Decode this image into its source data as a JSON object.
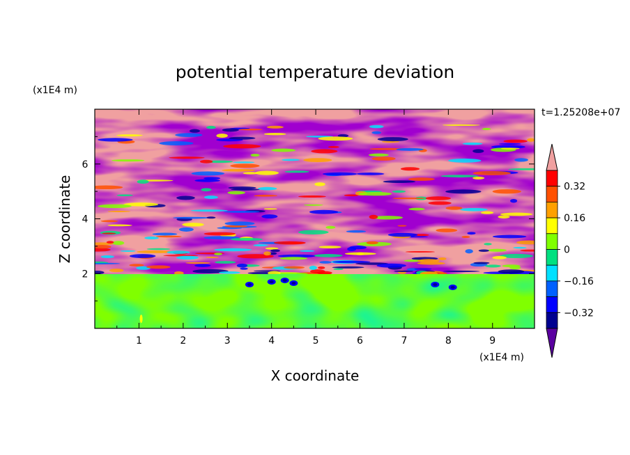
{
  "chart_data": {
    "type": "heatmap",
    "title": "potential temperature deviation",
    "xlabel": "X coordinate",
    "ylabel": "Z coordinate",
    "x_unit": "(x1E4 m)",
    "y_unit": "(x1E4 m)",
    "time_label": "t=1.25208e+07",
    "xlim": [
      0,
      9.95
    ],
    "ylim": [
      0,
      8
    ],
    "x_ticks": [
      "1",
      "2",
      "3",
      "4",
      "5",
      "6",
      "7",
      "8",
      "9"
    ],
    "y_ticks": [
      "2",
      "4",
      "6"
    ],
    "colorbar": {
      "tick_labels": [
        "0.32",
        "0.16",
        "0",
        "-0.16",
        "-0.32"
      ],
      "levels": [
        -0.4,
        -0.32,
        -0.24,
        -0.16,
        -0.08,
        0,
        0.08,
        0.16,
        0.24,
        0.32,
        0.4
      ],
      "colors": [
        "#5a00a0",
        "#000090",
        "#0000ff",
        "#0060ff",
        "#00e0ff",
        "#00e080",
        "#80ff00",
        "#ffff00",
        "#ffa000",
        "#ff5000",
        "#ff0000",
        "#f0a0a0"
      ],
      "extend": "both"
    },
    "description_regions": [
      {
        "z_range": [
          0,
          2
        ],
        "dominant_value": 0.05
      },
      {
        "z_range": [
          2,
          8
        ],
        "dominant_values": [
          -0.45,
          0.45
        ]
      }
    ]
  }
}
